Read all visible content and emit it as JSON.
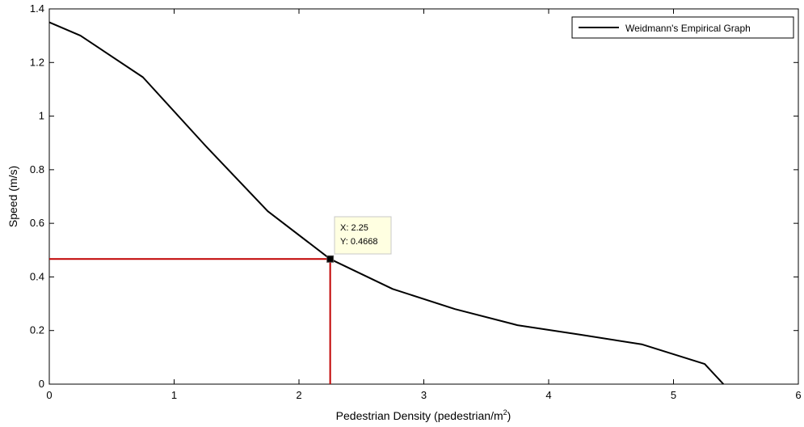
{
  "chart_data": {
    "type": "line",
    "xlabel": "Pedestrian Density (pedestrian/m",
    "xlabel_sup": "2",
    "xlabel_close": ")",
    "ylabel": "Speed (m/s)",
    "xlim": [
      0,
      6
    ],
    "ylim": [
      0,
      1.4
    ],
    "xticks": [
      0,
      1,
      2,
      3,
      4,
      5,
      6
    ],
    "yticks": [
      0,
      0.2,
      0.4,
      0.6,
      0.8,
      1,
      1.2,
      1.4
    ],
    "xtick_labels": [
      "0",
      "1",
      "2",
      "3",
      "4",
      "5",
      "6"
    ],
    "ytick_labels": [
      "0",
      "0.2",
      "0.4",
      "0.6",
      "0.8",
      "1",
      "1.2",
      "1.4"
    ],
    "grid": false,
    "legend_position": "top-right",
    "series": [
      {
        "name": "Weidmann's Empirical Graph",
        "color": "#000000",
        "x": [
          0,
          0.25,
          0.75,
          1.25,
          1.75,
          2.25,
          2.75,
          3.25,
          3.75,
          4.25,
          4.75,
          5.25,
          5.4
        ],
        "y": [
          1.35,
          1.3,
          1.145,
          0.89,
          0.645,
          0.4668,
          0.355,
          0.28,
          0.22,
          0.185,
          0.148,
          0.075,
          0
        ]
      }
    ],
    "marker": {
      "x": 2.25,
      "y": 0.4668,
      "color": "#c00000",
      "label_x": "X: 2.25",
      "label_y": "Y: 0.4668"
    }
  }
}
